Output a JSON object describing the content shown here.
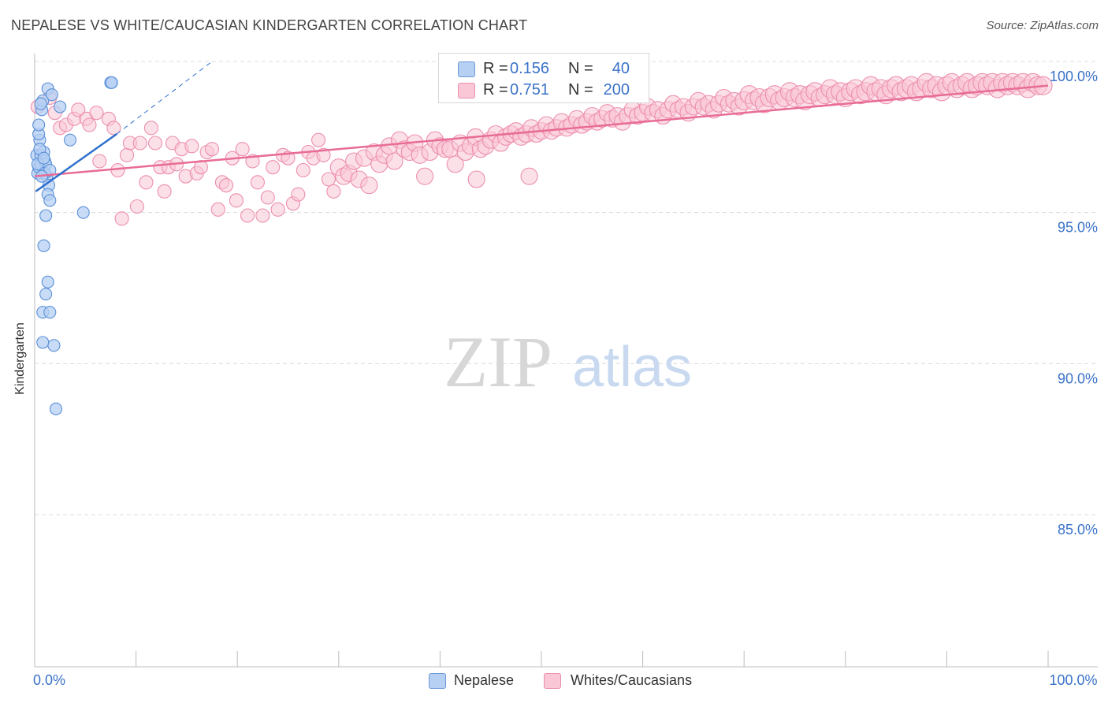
{
  "title": "NEPALESE VS WHITE/CAUCASIAN KINDERGARTEN CORRELATION CHART",
  "source": "Source: ZipAtlas.com",
  "watermark": {
    "zip": "ZIP",
    "atlas": "atlas"
  },
  "legend": {
    "rows": [
      {
        "r_label": "R =",
        "r_value": "0.156",
        "n_label": "N =",
        "n_value": "40"
      },
      {
        "r_label": "R =",
        "r_value": "0.751",
        "n_label": "N =",
        "n_value": "200"
      }
    ]
  },
  "bottom_legend": {
    "nepalese": "Nepalese",
    "whites": "Whites/Caucasians"
  },
  "colors": {
    "nepalese_fill": "#b6d0f4",
    "nepalese_stroke": "#5b8fd6",
    "nepalese_line": "#2e6fcc",
    "whites_fill": "#f9c7d6",
    "whites_stroke": "#ec8fae",
    "whites_line": "#e86c96",
    "tick_label": "#3a72c8",
    "grid": "#dcdcdc"
  },
  "chart_data": {
    "type": "scatter",
    "title": "NEPALESE VS WHITE/CAUCASIAN KINDERGARTEN CORRELATION CHART",
    "xlabel": "",
    "ylabel": "Kindergarten",
    "xlim": [
      0,
      100
    ],
    "ylim": [
      80.5,
      100.8
    ],
    "x_tick_labels": [
      {
        "value": 0,
        "label": "0.0%"
      },
      {
        "value": 100,
        "label": "100.0%"
      }
    ],
    "y_ticks": [
      {
        "value": 100,
        "label": "100.0%"
      },
      {
        "value": 95,
        "label": "95.0%"
      },
      {
        "value": 90,
        "label": "90.0%"
      },
      {
        "value": 85,
        "label": "85.0%"
      }
    ],
    "series": [
      {
        "name": "Nepalese",
        "r": 0.156,
        "n": 40,
        "trend": {
          "x0": 0.1,
          "y0": 95.7,
          "x1": 8.1,
          "y1": 97.6
        },
        "trend_extension": {
          "x0": 8.1,
          "y0": 97.6,
          "x1": 17.5,
          "y1": 100.0
        },
        "points": [
          [
            0.2,
            96.9
          ],
          [
            0.3,
            96.3
          ],
          [
            0.4,
            96.5
          ],
          [
            0.5,
            97.4
          ],
          [
            0.6,
            96.6
          ],
          [
            0.4,
            97.6
          ],
          [
            0.4,
            97.9
          ],
          [
            0.6,
            96.9
          ],
          [
            0.7,
            98.4
          ],
          [
            0.8,
            98.7
          ],
          [
            0.6,
            98.6
          ],
          [
            0.9,
            97.0
          ],
          [
            1.0,
            96.7
          ],
          [
            1.1,
            96.6
          ],
          [
            1.2,
            96.2
          ],
          [
            1.0,
            96.3
          ],
          [
            1.4,
            95.9
          ],
          [
            1.3,
            95.6
          ],
          [
            1.5,
            95.4
          ],
          [
            1.1,
            94.9
          ],
          [
            1.3,
            99.1
          ],
          [
            1.7,
            98.9
          ],
          [
            1.5,
            96.4
          ],
          [
            2.5,
            98.5
          ],
          [
            3.5,
            97.4
          ],
          [
            4.8,
            95.0
          ],
          [
            7.5,
            99.3
          ],
          [
            7.6,
            99.3
          ],
          [
            0.9,
            93.9
          ],
          [
            1.3,
            92.7
          ],
          [
            1.1,
            92.3
          ],
          [
            0.8,
            91.7
          ],
          [
            1.5,
            91.7
          ],
          [
            0.8,
            90.7
          ],
          [
            1.9,
            90.6
          ],
          [
            2.1,
            88.5
          ],
          [
            0.3,
            96.6
          ],
          [
            0.5,
            97.1
          ],
          [
            0.7,
            96.2
          ],
          [
            0.9,
            96.8
          ]
        ]
      },
      {
        "name": "Whites/Caucasians",
        "r": 0.751,
        "n": 200,
        "trend": {
          "x0": 0.0,
          "y0": 96.2,
          "x1": 100.0,
          "y1": 99.2
        },
        "points": [
          [
            0.3,
            98.5
          ],
          [
            1.5,
            98.8
          ],
          [
            2.0,
            98.3
          ],
          [
            2.5,
            97.8
          ],
          [
            3.1,
            97.9
          ],
          [
            3.9,
            98.1
          ],
          [
            4.3,
            98.4
          ],
          [
            5.1,
            98.1
          ],
          [
            5.4,
            97.9
          ],
          [
            6.1,
            98.3
          ],
          [
            6.4,
            96.7
          ],
          [
            7.3,
            98.1
          ],
          [
            7.8,
            97.8
          ],
          [
            8.2,
            96.4
          ],
          [
            8.6,
            94.8
          ],
          [
            9.1,
            96.9
          ],
          [
            9.4,
            97.3
          ],
          [
            10.1,
            95.2
          ],
          [
            10.4,
            97.3
          ],
          [
            11.0,
            96.0
          ],
          [
            11.5,
            97.8
          ],
          [
            11.9,
            97.3
          ],
          [
            12.4,
            96.5
          ],
          [
            12.8,
            95.7
          ],
          [
            13.2,
            96.5
          ],
          [
            13.6,
            97.3
          ],
          [
            14.0,
            96.6
          ],
          [
            14.5,
            97.1
          ],
          [
            14.9,
            96.2
          ],
          [
            15.5,
            97.2
          ],
          [
            16.0,
            96.3
          ],
          [
            16.4,
            96.5
          ],
          [
            17.0,
            97.0
          ],
          [
            17.5,
            97.1
          ],
          [
            18.1,
            95.1
          ],
          [
            18.5,
            96.0
          ],
          [
            18.9,
            95.9
          ],
          [
            19.5,
            96.8
          ],
          [
            19.9,
            95.4
          ],
          [
            20.5,
            97.1
          ],
          [
            21.0,
            94.9
          ],
          [
            21.5,
            96.7
          ],
          [
            22.0,
            96.0
          ],
          [
            22.5,
            94.9
          ],
          [
            23.0,
            95.5
          ],
          [
            23.5,
            96.5
          ],
          [
            24.0,
            95.1
          ],
          [
            24.5,
            96.9
          ],
          [
            25.0,
            96.8
          ],
          [
            25.5,
            95.3
          ],
          [
            26.0,
            95.6
          ],
          [
            26.5,
            96.4
          ],
          [
            27.0,
            97.0
          ],
          [
            27.5,
            96.8
          ],
          [
            28.0,
            97.4
          ],
          [
            28.5,
            96.9
          ],
          [
            29.0,
            96.1
          ],
          [
            29.5,
            95.7
          ],
          [
            30.0,
            96.5
          ],
          [
            30.5,
            96.2
          ],
          [
            31.0,
            96.3
          ],
          [
            31.5,
            96.7
          ],
          [
            32.0,
            96.1
          ],
          [
            32.5,
            96.8
          ],
          [
            33.0,
            95.9
          ],
          [
            33.5,
            97.0
          ],
          [
            34.0,
            96.6
          ],
          [
            34.5,
            96.9
          ],
          [
            35.0,
            97.2
          ],
          [
            35.5,
            96.7
          ],
          [
            36.0,
            97.4
          ],
          [
            36.5,
            97.1
          ],
          [
            37.0,
            97.0
          ],
          [
            37.5,
            97.3
          ],
          [
            38.0,
            96.9
          ],
          [
            38.5,
            96.2
          ],
          [
            39.0,
            97.0
          ],
          [
            39.5,
            97.4
          ],
          [
            40.0,
            97.2
          ],
          [
            40.5,
            97.1
          ],
          [
            41.0,
            97.1
          ],
          [
            41.5,
            96.6
          ],
          [
            42.0,
            97.3
          ],
          [
            42.5,
            97.0
          ],
          [
            43.0,
            97.2
          ],
          [
            43.5,
            97.5
          ],
          [
            44.0,
            97.1
          ],
          [
            44.5,
            97.2
          ],
          [
            45.0,
            97.4
          ],
          [
            45.5,
            97.6
          ],
          [
            46.0,
            97.3
          ],
          [
            46.5,
            97.5
          ],
          [
            47.0,
            97.6
          ],
          [
            47.5,
            97.7
          ],
          [
            48.0,
            97.5
          ],
          [
            48.5,
            97.6
          ],
          [
            49.0,
            97.8
          ],
          [
            49.5,
            97.6
          ],
          [
            50.0,
            97.7
          ],
          [
            50.5,
            97.9
          ],
          [
            51.0,
            97.7
          ],
          [
            51.5,
            97.8
          ],
          [
            52.0,
            98.0
          ],
          [
            52.5,
            97.8
          ],
          [
            53.0,
            97.9
          ],
          [
            53.5,
            98.1
          ],
          [
            54.0,
            97.9
          ],
          [
            54.5,
            98.0
          ],
          [
            55.0,
            98.2
          ],
          [
            55.5,
            98.0
          ],
          [
            56.0,
            98.1
          ],
          [
            56.5,
            98.3
          ],
          [
            57.0,
            98.1
          ],
          [
            57.5,
            98.2
          ],
          [
            58.0,
            98.0
          ],
          [
            58.5,
            98.2
          ],
          [
            59.0,
            98.4
          ],
          [
            59.5,
            98.2
          ],
          [
            60.0,
            98.3
          ],
          [
            60.5,
            98.5
          ],
          [
            61.0,
            98.3
          ],
          [
            61.5,
            98.4
          ],
          [
            62.0,
            98.2
          ],
          [
            62.5,
            98.4
          ],
          [
            63.0,
            98.6
          ],
          [
            63.5,
            98.4
          ],
          [
            64.0,
            98.5
          ],
          [
            64.5,
            98.3
          ],
          [
            65.0,
            98.5
          ],
          [
            65.5,
            98.7
          ],
          [
            66.0,
            98.5
          ],
          [
            66.5,
            98.6
          ],
          [
            67.0,
            98.4
          ],
          [
            67.5,
            98.6
          ],
          [
            68.0,
            98.8
          ],
          [
            68.5,
            98.6
          ],
          [
            69.0,
            98.7
          ],
          [
            69.5,
            98.5
          ],
          [
            70.0,
            98.7
          ],
          [
            70.5,
            98.9
          ],
          [
            71.0,
            98.7
          ],
          [
            71.5,
            98.8
          ],
          [
            72.0,
            98.6
          ],
          [
            72.5,
            98.8
          ],
          [
            73.0,
            98.9
          ],
          [
            73.5,
            98.7
          ],
          [
            74.0,
            98.8
          ],
          [
            74.5,
            99.0
          ],
          [
            75.0,
            98.8
          ],
          [
            75.5,
            98.9
          ],
          [
            76.0,
            98.7
          ],
          [
            76.5,
            98.9
          ],
          [
            77.0,
            99.0
          ],
          [
            77.5,
            98.8
          ],
          [
            78.0,
            98.9
          ],
          [
            78.5,
            99.1
          ],
          [
            79.0,
            98.9
          ],
          [
            79.5,
            99.0
          ],
          [
            80.0,
            98.8
          ],
          [
            80.5,
            99.0
          ],
          [
            81.0,
            99.1
          ],
          [
            81.5,
            98.9
          ],
          [
            82.0,
            99.0
          ],
          [
            82.5,
            99.2
          ],
          [
            83.0,
            99.0
          ],
          [
            83.5,
            99.1
          ],
          [
            84.0,
            98.9
          ],
          [
            84.5,
            99.1
          ],
          [
            85.0,
            99.2
          ],
          [
            85.5,
            99.0
          ],
          [
            86.0,
            99.1
          ],
          [
            86.5,
            99.2
          ],
          [
            87.0,
            99.0
          ],
          [
            87.5,
            99.1
          ],
          [
            88.0,
            99.3
          ],
          [
            88.5,
            99.1
          ],
          [
            89.0,
            99.2
          ],
          [
            89.5,
            99.0
          ],
          [
            90.0,
            99.2
          ],
          [
            90.5,
            99.3
          ],
          [
            91.0,
            99.1
          ],
          [
            91.5,
            99.2
          ],
          [
            92.0,
            99.3
          ],
          [
            92.5,
            99.1
          ],
          [
            93.0,
            99.2
          ],
          [
            93.5,
            99.3
          ],
          [
            94.0,
            99.2
          ],
          [
            94.5,
            99.3
          ],
          [
            95.0,
            99.1
          ],
          [
            95.5,
            99.3
          ],
          [
            96.0,
            99.2
          ],
          [
            96.5,
            99.3
          ],
          [
            97.0,
            99.2
          ],
          [
            97.5,
            99.3
          ],
          [
            98.0,
            99.1
          ],
          [
            98.5,
            99.3
          ],
          [
            99.0,
            99.2
          ],
          [
            99.5,
            99.2
          ],
          [
            48.8,
            96.2
          ],
          [
            43.6,
            96.1
          ]
        ]
      }
    ]
  }
}
